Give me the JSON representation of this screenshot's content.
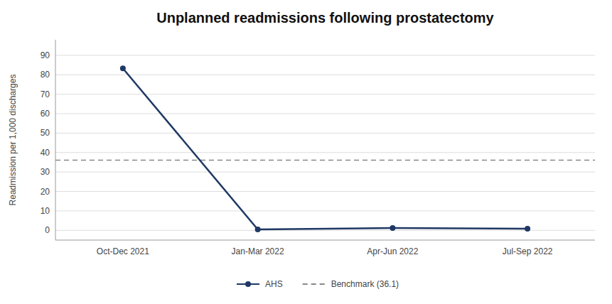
{
  "chart_data": {
    "type": "line",
    "title": "Unplanned readmissions following prostatectomy",
    "y_label": "Readmission per 1,000 discharges",
    "categories": [
      "Oct-Dec 2021",
      "Jan-Mar 2022",
      "Apr-Jun 2022",
      "Jul-Sep 2022"
    ],
    "series": [
      {
        "name": "AHS",
        "color": "#1F3864",
        "values": [
          83.3,
          0.5,
          1.2,
          0.8
        ],
        "marker": "circle",
        "line_style": "solid"
      }
    ],
    "benchmark": {
      "name": "Benchmark (36.1)",
      "value": 36.1,
      "color": "#888888",
      "line_style": "dashed"
    },
    "ylim": [
      -5,
      98
    ],
    "yticks": [
      0,
      10,
      20,
      30,
      40,
      50,
      60,
      70,
      80,
      90
    ],
    "grid": true,
    "legend": "bottom"
  }
}
